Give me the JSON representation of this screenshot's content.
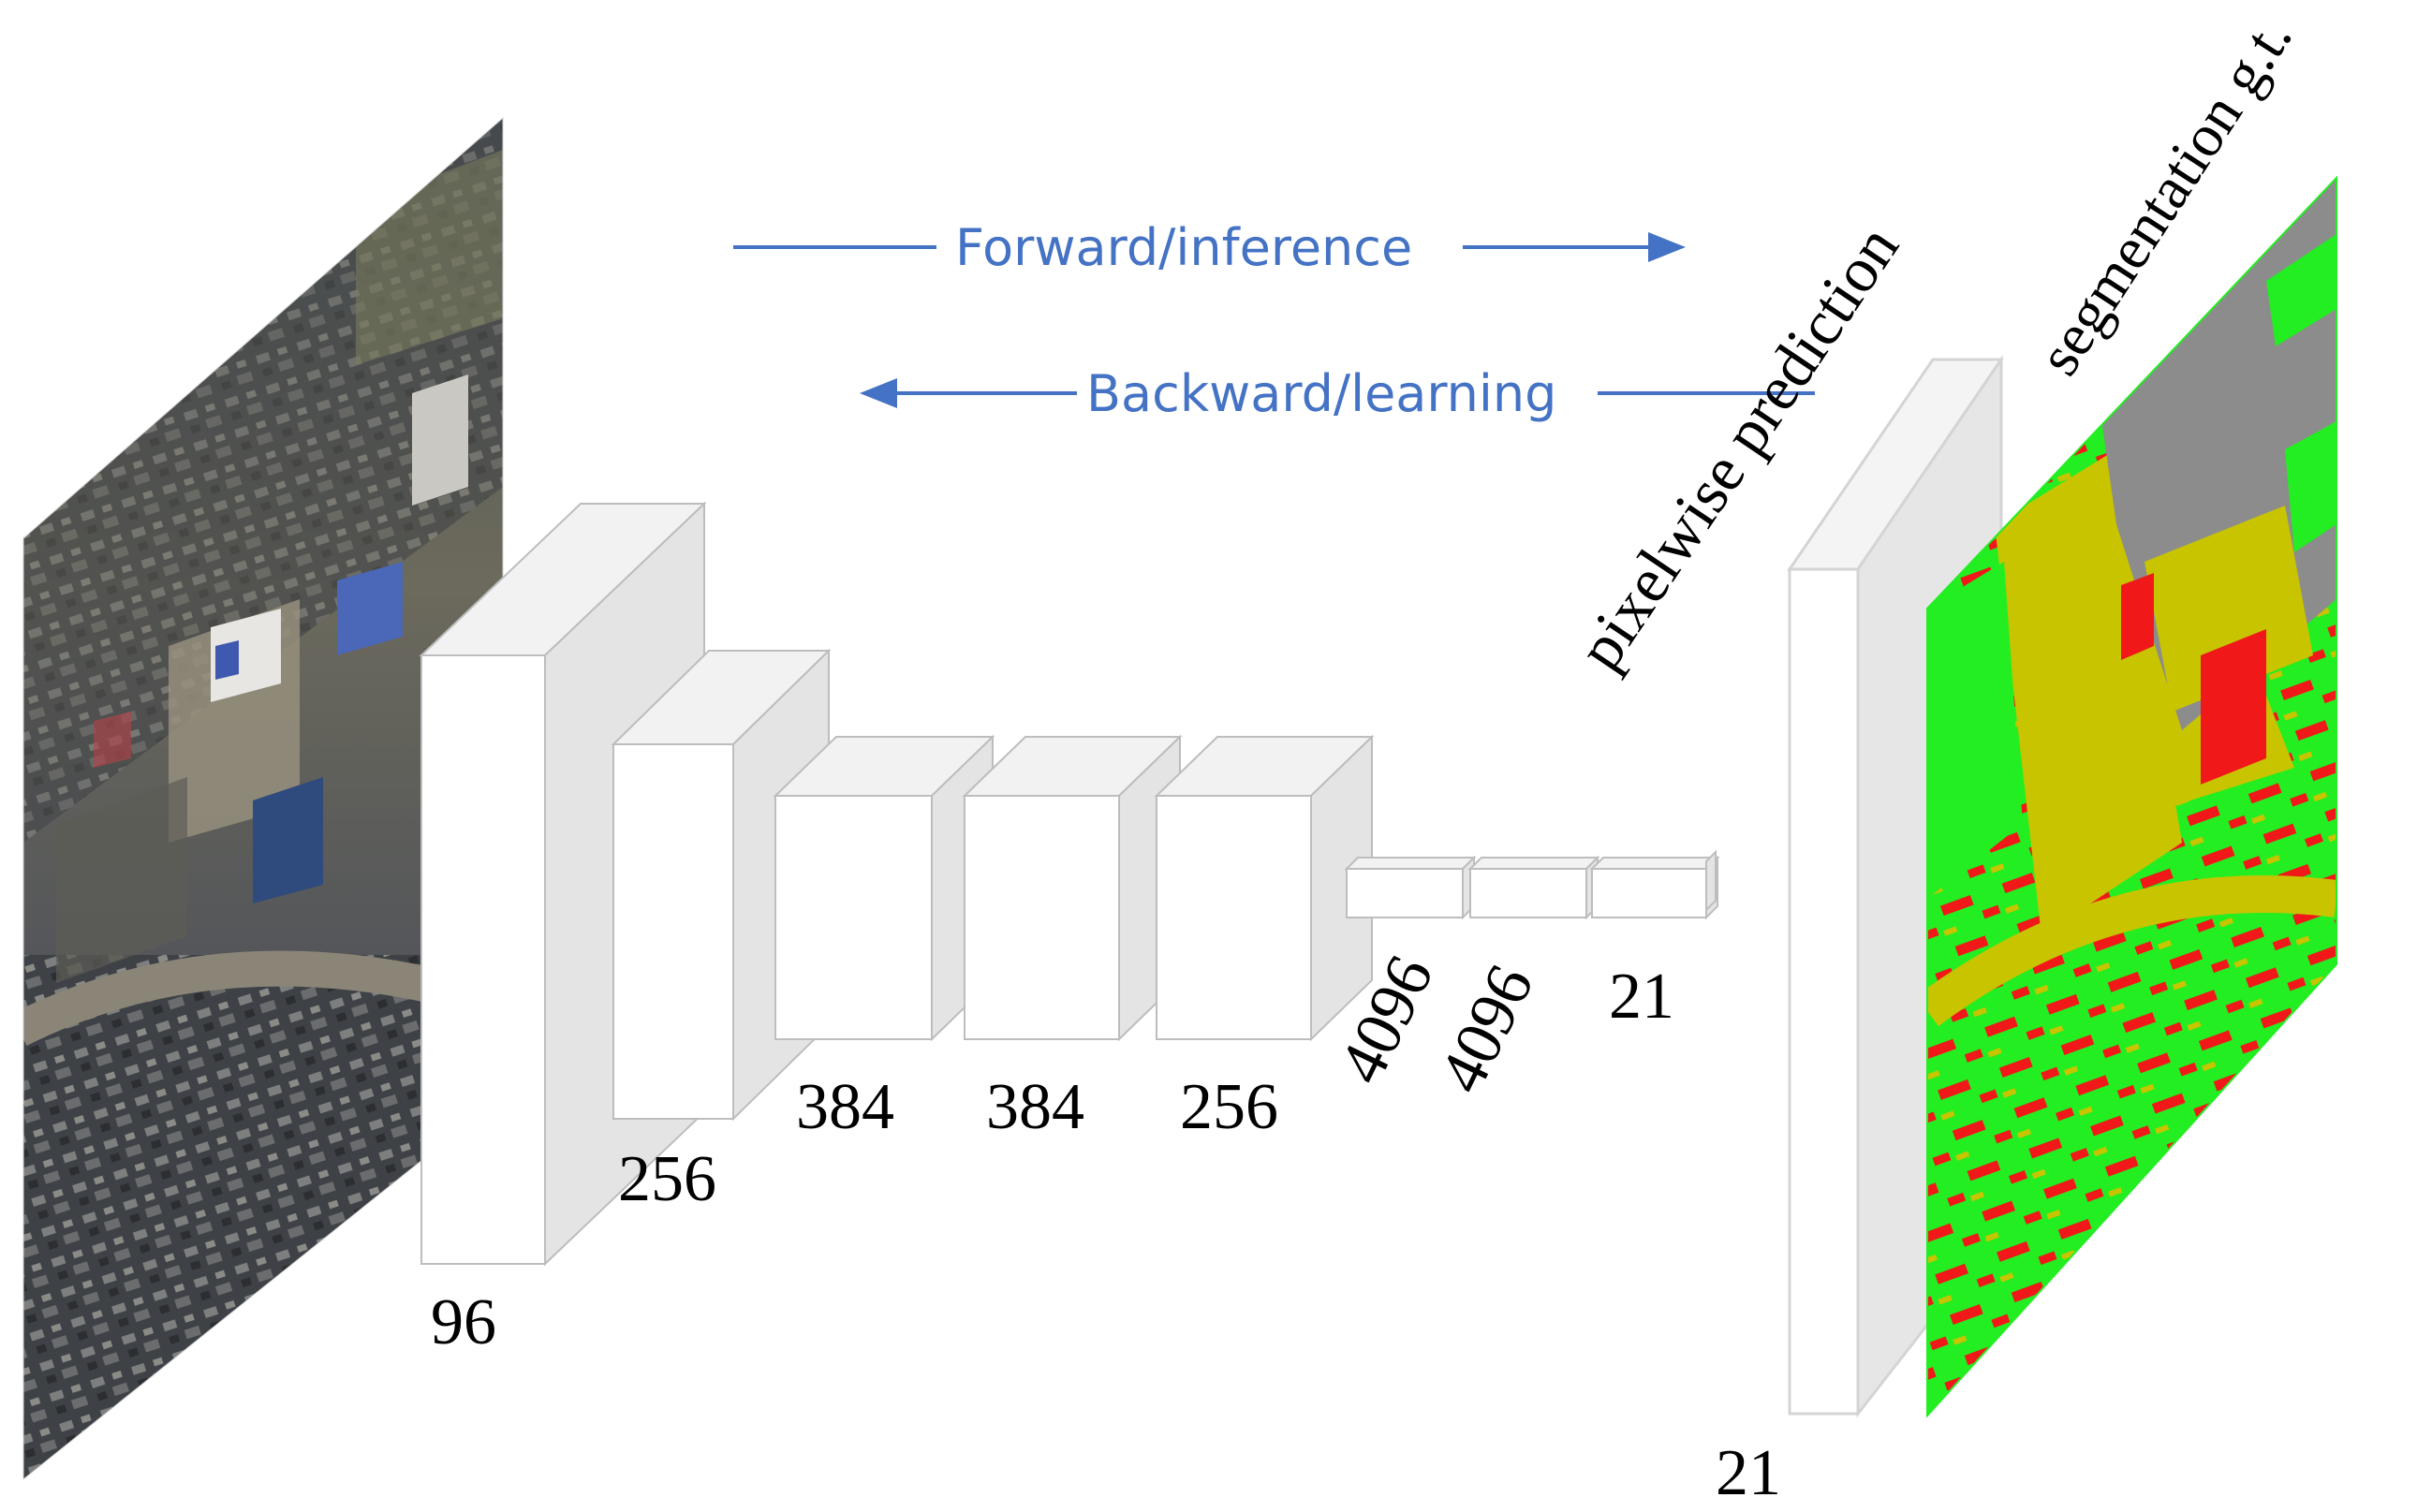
{
  "arrows": {
    "forward_label": "Forward/inference",
    "backward_label": "Backward/learning",
    "color": "#4472C4"
  },
  "layers": {
    "conv1": "96",
    "conv2": "256",
    "conv3": "384",
    "conv4": "384",
    "conv5": "256",
    "fc6": "4096",
    "fc7": "4096",
    "fc8": "21",
    "output": "21"
  },
  "titles": {
    "prediction": "pixelwise prediction",
    "ground_truth": "segmentation g.t."
  },
  "colors": {
    "block_front": "#ffffff",
    "block_side": "#e4e4e4",
    "block_edge": "#bdbdbd",
    "seg_green": "#22ee22",
    "seg_yellow": "#c8c400",
    "seg_gray": "#8c8c8c",
    "seg_red": "#f01818"
  }
}
